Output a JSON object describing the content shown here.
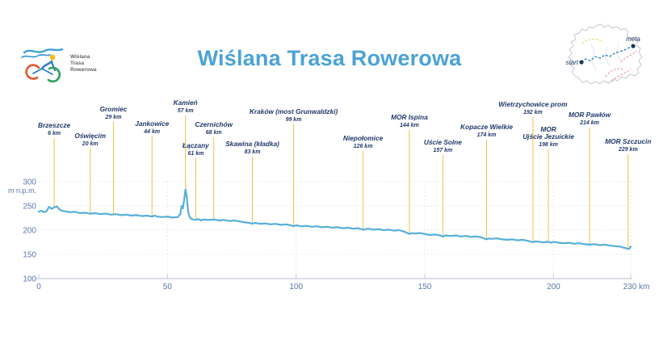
{
  "header": {
    "title": "Wiślana Trasa Rowerowa",
    "logo": {
      "line1": "Wiślana",
      "line2": "Trasa",
      "line3": "Rowerowa"
    },
    "map": {
      "start_label": "start",
      "meta_label": "meta"
    }
  },
  "colors": {
    "title": "#4ba2d4",
    "elevation_line": "#56afd8",
    "marker_line": "#f2c143",
    "label_text": "#20386b",
    "axis_text": "#5b76ae",
    "axis_line": "#c6cbd8",
    "gridline": "#dfe3ee",
    "map_outline": "#c2c8d2",
    "map_route_main": "#2e86c1",
    "map_route_yellow": "#efd977",
    "map_route_pink": "#f07fa8",
    "map_dot": "#1c3660",
    "logo_wave": "#3fa0d8",
    "logo_head": "#f6b826",
    "logo_wheel_left": "#e2572b",
    "logo_wheel_right": "#2fa05c",
    "logo_body": "#2f7fc1"
  },
  "chart_data": {
    "type": "line",
    "title": "Wiślana Trasa Rowerowa",
    "ylabel": "m n.p.m.",
    "x_unit": "km",
    "xlim": [
      0,
      230
    ],
    "ylim": [
      100,
      300
    ],
    "grid": true,
    "x_ticks": [
      0,
      50,
      100,
      150,
      200,
      230
    ],
    "x_tick_labels": [
      "0",
      "50",
      "100",
      "150",
      "200",
      "230 km"
    ],
    "y_ticks": [
      300,
      250,
      200,
      150,
      100
    ],
    "profile": [
      [
        0,
        238
      ],
      [
        1,
        240
      ],
      [
        2,
        237
      ],
      [
        3,
        239
      ],
      [
        4,
        248
      ],
      [
        5,
        244
      ],
      [
        6,
        247
      ],
      [
        7,
        249
      ],
      [
        8,
        243
      ],
      [
        9,
        240
      ],
      [
        10,
        239
      ],
      [
        12,
        237
      ],
      [
        14,
        238
      ],
      [
        16,
        235
      ],
      [
        18,
        236
      ],
      [
        20,
        234
      ],
      [
        22,
        235
      ],
      [
        24,
        233
      ],
      [
        26,
        234
      ],
      [
        28,
        232
      ],
      [
        30,
        233
      ],
      [
        32,
        231
      ],
      [
        34,
        232
      ],
      [
        36,
        230
      ],
      [
        38,
        231
      ],
      [
        40,
        229
      ],
      [
        42,
        230
      ],
      [
        44,
        228
      ],
      [
        45,
        230
      ],
      [
        46,
        228
      ],
      [
        48,
        227
      ],
      [
        50,
        228
      ],
      [
        52,
        226
      ],
      [
        54,
        227
      ],
      [
        55,
        233
      ],
      [
        55.5,
        250
      ],
      [
        56,
        245
      ],
      [
        56.5,
        264
      ],
      [
        57,
        284
      ],
      [
        57.5,
        268
      ],
      [
        58,
        240
      ],
      [
        58.5,
        229
      ],
      [
        59,
        224
      ],
      [
        60,
        222
      ],
      [
        61,
        221
      ],
      [
        62,
        223
      ],
      [
        63,
        220
      ],
      [
        64,
        222
      ],
      [
        66,
        221
      ],
      [
        68,
        222
      ],
      [
        70,
        220
      ],
      [
        72,
        221
      ],
      [
        74,
        219
      ],
      [
        76,
        220
      ],
      [
        78,
        218
      ],
      [
        80,
        216
      ],
      [
        82,
        215
      ],
      [
        83,
        213
      ],
      [
        84,
        215
      ],
      [
        86,
        213
      ],
      [
        88,
        214
      ],
      [
        90,
        212
      ],
      [
        92,
        213
      ],
      [
        94,
        211
      ],
      [
        96,
        212
      ],
      [
        98,
        210
      ],
      [
        99,
        208
      ],
      [
        100,
        210
      ],
      [
        102,
        208
      ],
      [
        104,
        209
      ],
      [
        106,
        207
      ],
      [
        108,
        208
      ],
      [
        110,
        206
      ],
      [
        112,
        207
      ],
      [
        114,
        205
      ],
      [
        116,
        206
      ],
      [
        118,
        204
      ],
      [
        120,
        205
      ],
      [
        122,
        203
      ],
      [
        124,
        204
      ],
      [
        126,
        201
      ],
      [
        128,
        203
      ],
      [
        130,
        201
      ],
      [
        132,
        202
      ],
      [
        134,
        200
      ],
      [
        136,
        201
      ],
      [
        138,
        199
      ],
      [
        140,
        200
      ],
      [
        142,
        197
      ],
      [
        144,
        192
      ],
      [
        145,
        194
      ],
      [
        146,
        193
      ],
      [
        148,
        194
      ],
      [
        150,
        192
      ],
      [
        152,
        190
      ],
      [
        154,
        191
      ],
      [
        156,
        189
      ],
      [
        157,
        187
      ],
      [
        158,
        189
      ],
      [
        160,
        188
      ],
      [
        162,
        189
      ],
      [
        164,
        187
      ],
      [
        166,
        188
      ],
      [
        168,
        186
      ],
      [
        170,
        187
      ],
      [
        172,
        185
      ],
      [
        174,
        181
      ],
      [
        175,
        183
      ],
      [
        176,
        182
      ],
      [
        178,
        183
      ],
      [
        180,
        181
      ],
      [
        182,
        180
      ],
      [
        184,
        181
      ],
      [
        186,
        179
      ],
      [
        188,
        180
      ],
      [
        190,
        178
      ],
      [
        192,
        175
      ],
      [
        193,
        177
      ],
      [
        194,
        176
      ],
      [
        196,
        175
      ],
      [
        198,
        176
      ],
      [
        199,
        174
      ],
      [
        200,
        176
      ],
      [
        202,
        174
      ],
      [
        204,
        173
      ],
      [
        206,
        174
      ],
      [
        208,
        172
      ],
      [
        210,
        173
      ],
      [
        212,
        171
      ],
      [
        214,
        170
      ],
      [
        216,
        171
      ],
      [
        218,
        169
      ],
      [
        220,
        170
      ],
      [
        222,
        168
      ],
      [
        224,
        167
      ],
      [
        226,
        166
      ],
      [
        227,
        164
      ],
      [
        228,
        163
      ],
      [
        229,
        161
      ],
      [
        229.5,
        162
      ],
      [
        230,
        166
      ]
    ],
    "waypoints": [
      {
        "name": "Brzeszcze",
        "km": 6,
        "km_label": "6 km",
        "label_y": 150
      },
      {
        "name": "Oświęcim",
        "km": 20,
        "km_label": "20 km",
        "label_y": 163
      },
      {
        "name": "Gromiec",
        "km": 29,
        "km_label": "29 km",
        "label_y": 130
      },
      {
        "name": "Jankowice",
        "km": 44,
        "km_label": "44 km",
        "label_y": 148
      },
      {
        "name": "Kamień",
        "km": 57,
        "km_label": "57 km",
        "label_y": 122
      },
      {
        "name": "Łączany",
        "km": 61,
        "km_label": "61 km",
        "label_y": 175
      },
      {
        "name": "Czernichów",
        "km": 68,
        "km_label": "68 km",
        "label_y": 149
      },
      {
        "name": "Skawina (kładka)",
        "km": 83,
        "km_label": "83 km",
        "label_y": 173
      },
      {
        "name": "Kraków (most Grunwaldzki)",
        "km": 99,
        "km_label": "99 km",
        "label_y": 133
      },
      {
        "name": "Niepołomice",
        "km": 126,
        "km_label": "126 km",
        "label_y": 166
      },
      {
        "name": "MOR Ispina",
        "km": 144,
        "km_label": "144 km",
        "label_y": 140
      },
      {
        "name": "Uście Solne",
        "km": 157,
        "km_label": "157 km",
        "label_y": 171
      },
      {
        "name": "Kopacze Wielkie",
        "km": 174,
        "km_label": "174 km",
        "label_y": 152
      },
      {
        "name": "Wietrzychowice prom",
        "km": 192,
        "km_label": "192 km",
        "label_y": 124
      },
      {
        "name": "MOR",
        "name2": "Ujście Jezuickie",
        "km": 198,
        "km_label": "198 km",
        "label_y": 155
      },
      {
        "name": "MOR Pawłów",
        "km": 214,
        "km_label": "214 km",
        "label_y": 137
      },
      {
        "name": "MOR Szczucin",
        "km": 229,
        "km_label": "229 km",
        "label_y": 170
      }
    ]
  }
}
